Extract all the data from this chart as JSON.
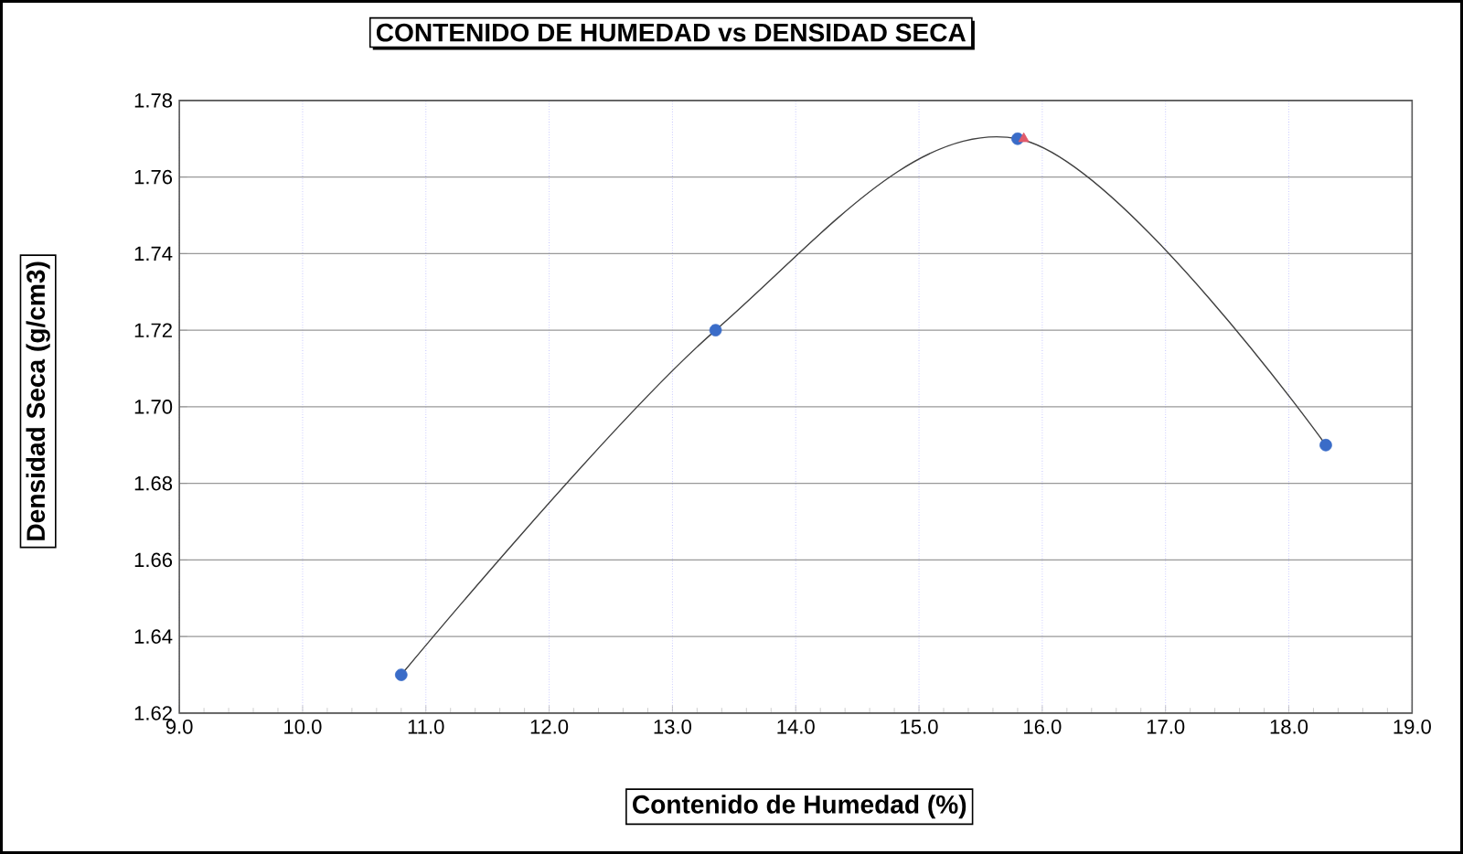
{
  "chart_data": {
    "type": "scatter",
    "title": "CONTENIDO DE HUMEDAD vs DENSIDAD SECA",
    "xlabel": "Contenido de Humedad (%)",
    "ylabel": "Densidad Seca (g/cm3)",
    "xlim": [
      9.0,
      19.0
    ],
    "ylim": [
      1.62,
      1.78
    ],
    "xticks": [
      {
        "value": 9,
        "label": "9.0"
      },
      {
        "value": 10,
        "label": "10.0"
      },
      {
        "value": 11,
        "label": "11.0"
      },
      {
        "value": 12,
        "label": "12.0"
      },
      {
        "value": 13,
        "label": "13.0"
      },
      {
        "value": 14,
        "label": "14.0"
      },
      {
        "value": 15,
        "label": "15.0"
      },
      {
        "value": 16,
        "label": "16.0"
      },
      {
        "value": 17,
        "label": "17.0"
      },
      {
        "value": 18,
        "label": "18.0"
      },
      {
        "value": 19,
        "label": "19.0"
      }
    ],
    "yticks": [
      1.62,
      1.64,
      1.66,
      1.68,
      {
        "value": 1.7,
        "label": "1.70"
      },
      1.72,
      1.74,
      1.76,
      1.78
    ],
    "grid": true,
    "series": [
      {
        "type": "line",
        "color": "#404040",
        "marker": "none",
        "x": [
          10.8,
          13.35,
          15.8,
          18.3
        ],
        "values": [
          1.63,
          1.72,
          1.77,
          1.69
        ]
      },
      {
        "color": "#3a6cc8",
        "marker": "circle",
        "x": [
          10.8,
          13.35,
          15.8,
          18.3
        ],
        "values": [
          1.63,
          1.72,
          1.77,
          1.69
        ]
      },
      {
        "color": "#e05a6a",
        "marker": "triangle",
        "x": [
          15.85
        ],
        "values": [
          1.77
        ]
      }
    ]
  }
}
